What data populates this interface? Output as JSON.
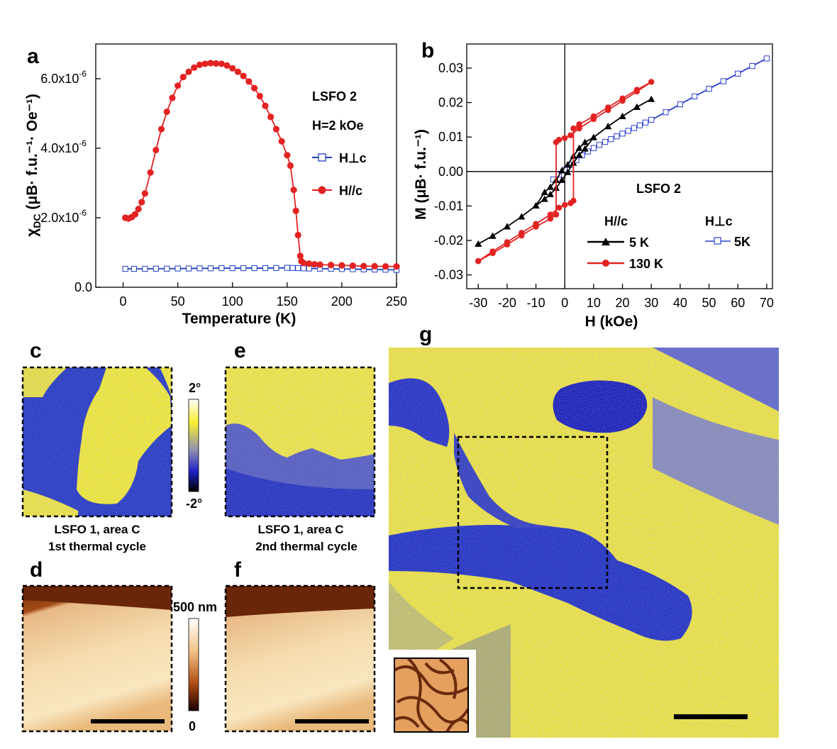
{
  "chart_data": [
    {
      "panel": "a",
      "type": "scatter",
      "xlabel": "Temperature (K)",
      "ylabel_main": "χ",
      "ylabel_sub": "DC",
      "ylabel_rest": " (μB· f.u.⁻¹· Oe⁻¹)",
      "xlim": [
        -25,
        250
      ],
      "ylim": [
        0,
        7e-06
      ],
      "x_ticks": [
        0,
        50,
        100,
        150,
        200,
        250
      ],
      "x_tick_labels": [
        "0",
        "50",
        "100",
        "150",
        "200",
        "250"
      ],
      "y_ticks": [
        0,
        2e-06,
        4e-06,
        6e-06
      ],
      "y_tick_labels": [
        "0.0",
        "2.0x10",
        "4.0x10",
        "6.0x10"
      ],
      "y_tick_exponent": "-6",
      "annotations": [
        "LSFO 2",
        "H=2 kOe"
      ],
      "legend_position": "right",
      "series": [
        {
          "name": "H⊥c",
          "color": "#1f3fbf",
          "marker": "open-square",
          "x": [
            2,
            10,
            20,
            30,
            40,
            50,
            60,
            70,
            80,
            90,
            100,
            110,
            120,
            130,
            140,
            150,
            155,
            160,
            165,
            170,
            180,
            190,
            200,
            210,
            220,
            230,
            240,
            250
          ],
          "y": [
            5.3e-07,
            5.3e-07,
            5.3e-07,
            5.35e-07,
            5.35e-07,
            5.4e-07,
            5.4e-07,
            5.45e-07,
            5.45e-07,
            5.5e-07,
            5.5e-07,
            5.5e-07,
            5.5e-07,
            5.5e-07,
            5.55e-07,
            5.6e-07,
            5.55e-07,
            5.5e-07,
            5.45e-07,
            5.4e-07,
            5.35e-07,
            5.3e-07,
            5.25e-07,
            5.2e-07,
            5.15e-07,
            5.1e-07,
            5.05e-07,
            5e-07
          ]
        },
        {
          "name": "H//c",
          "color": "#e32222",
          "marker": "filled-circle",
          "x": [
            2,
            5,
            8,
            11,
            14,
            17,
            20,
            25,
            30,
            35,
            40,
            45,
            50,
            55,
            60,
            65,
            70,
            75,
            80,
            85,
            90,
            95,
            100,
            105,
            110,
            115,
            120,
            125,
            130,
            135,
            140,
            145,
            150,
            153,
            156,
            158,
            160,
            162,
            163,
            165,
            170,
            175,
            180,
            190,
            200,
            210,
            220,
            230,
            240,
            250
          ],
          "y": [
            2e-06,
            1.98e-06,
            2.02e-06,
            2.1e-06,
            2.25e-06,
            2.45e-06,
            2.7e-06,
            3.3e-06,
            3.95e-06,
            4.55e-06,
            5.05e-06,
            5.45e-06,
            5.8e-06,
            6.05e-06,
            6.2e-06,
            6.32e-06,
            6.4e-06,
            6.43e-06,
            6.45e-06,
            6.44e-06,
            6.43e-06,
            6.38e-06,
            6.3e-06,
            6.2e-06,
            6.08e-06,
            5.92e-06,
            5.73e-06,
            5.5e-06,
            5.22e-06,
            4.9e-06,
            4.55e-06,
            4.2e-06,
            3.8e-06,
            3.5e-06,
            2.8e-06,
            2.2e-06,
            1.5e-06,
            9e-07,
            7.5e-07,
            7e-07,
            6.8e-07,
            6.6e-07,
            6.5e-07,
            6.4e-07,
            6.3e-07,
            6.2e-07,
            6.1e-07,
            6.05e-07,
            6e-07,
            6e-07
          ]
        }
      ]
    },
    {
      "panel": "b",
      "type": "scatter",
      "xlabel": "H (kOe)",
      "ylabel": "M (μB· f.u.⁻¹)",
      "xlim": [
        -34,
        72
      ],
      "ylim": [
        -0.034,
        0.037
      ],
      "x_ticks": [
        -30,
        -20,
        -10,
        0,
        10,
        20,
        30,
        40,
        50,
        60,
        70
      ],
      "x_tick_labels": [
        "-30",
        "-20",
        "-10",
        "0",
        "10",
        "20",
        "30",
        "40",
        "50",
        "60",
        "70"
      ],
      "y_ticks": [
        -0.03,
        -0.02,
        -0.01,
        0,
        0.01,
        0.02,
        0.03
      ],
      "y_tick_labels": [
        "-0.03",
        "-0.02",
        "-0.01",
        "0.00",
        "0.01",
        "0.02",
        "0.03"
      ],
      "annotations": [
        "LSFO 2",
        "H//c",
        "H⊥c"
      ],
      "legend_position": "bottom-right",
      "series": [
        {
          "name": "5 K",
          "group": "H//c",
          "color": "#000000",
          "marker": "filled-triangle",
          "x": [
            -30,
            -25,
            -20,
            -15,
            -10,
            -7,
            -5,
            -3,
            -1,
            1,
            3,
            5,
            7,
            10,
            15,
            20,
            25,
            30,
            25,
            20,
            15,
            10,
            7,
            5,
            3,
            1,
            -1,
            -3,
            -5,
            -7,
            -10,
            -15,
            -20,
            -25,
            -30
          ],
          "y": [
            -0.021,
            -0.0187,
            -0.016,
            -0.0131,
            -0.0099,
            -0.008,
            -0.0066,
            -0.0048,
            -0.0025,
            -0.0002,
            0.0025,
            0.0048,
            0.0066,
            0.0099,
            0.0131,
            0.016,
            0.0187,
            0.021,
            0.0187,
            0.016,
            0.0131,
            0.0099,
            0.0085,
            0.0068,
            0.0045,
            0.002,
            0.0003,
            -0.0025,
            -0.0045,
            -0.006,
            -0.0099,
            -0.0131,
            -0.016,
            -0.0187,
            -0.021
          ]
        },
        {
          "name": "130 K",
          "group": "H//c",
          "color": "#e32222",
          "marker": "filled-circle",
          "x": [
            -30,
            -25,
            -20,
            -15,
            -10,
            -5,
            -3,
            -3,
            -2,
            0,
            2,
            5,
            10,
            15,
            20,
            25,
            30,
            25,
            20,
            15,
            10,
            5,
            3,
            3,
            2,
            0,
            -2,
            -5,
            -10,
            -15,
            -20,
            -25,
            -30
          ],
          "y": [
            -0.026,
            -0.0237,
            -0.0212,
            -0.0186,
            -0.016,
            -0.0137,
            -0.0125,
            0.0085,
            0.0092,
            0.0097,
            0.0105,
            0.0125,
            0.0152,
            0.0178,
            0.0205,
            0.0232,
            0.026,
            0.0237,
            0.0212,
            0.0186,
            0.016,
            0.0137,
            0.0125,
            -0.0085,
            -0.0092,
            -0.0097,
            -0.0105,
            -0.0125,
            -0.0152,
            -0.0178,
            -0.0205,
            -0.0232,
            -0.026
          ]
        },
        {
          "name": "5K",
          "group": "H⊥c",
          "color": "#2a3fd0",
          "marker": "open-square",
          "x": [
            -4,
            -2,
            0,
            2,
            4,
            6,
            8,
            10,
            12,
            14,
            16,
            18,
            20,
            22,
            24,
            26,
            28,
            30,
            35,
            40,
            45,
            50,
            55,
            60,
            65,
            70
          ],
          "y": [
            -0.0023,
            -0.0009,
            0.0005,
            0.0019,
            0.0033,
            0.0047,
            0.0058,
            0.0068,
            0.0077,
            0.0086,
            0.0094,
            0.0102,
            0.011,
            0.0118,
            0.0126,
            0.0134,
            0.0142,
            0.015,
            0.0172,
            0.0195,
            0.0218,
            0.024,
            0.0262,
            0.0284,
            0.0306,
            0.0328
          ]
        }
      ]
    },
    {
      "panel": "c-g",
      "type": "heatmap",
      "colorbar_top": [
        {
          "label": "2°",
          "value": 2
        },
        {
          "label": "-2°",
          "value": -2
        }
      ],
      "colorbar_bottom": [
        {
          "label": "500 nm",
          "value": 500
        },
        {
          "label": "0",
          "value": 0
        }
      ],
      "captions": {
        "c": [
          "LSFO 1, area C",
          "1st thermal cycle"
        ],
        "e": [
          "LSFO 1, area C",
          "2nd thermal cycle"
        ]
      }
    }
  ],
  "panel_letters": [
    "a",
    "b",
    "c",
    "d",
    "e",
    "f",
    "g"
  ],
  "colors": {
    "domain_yellow": "#f2ea1c",
    "domain_blue": "#2b2fb8",
    "afm_light": "#f7dca8",
    "afm_dark": "#6e2a0a"
  }
}
